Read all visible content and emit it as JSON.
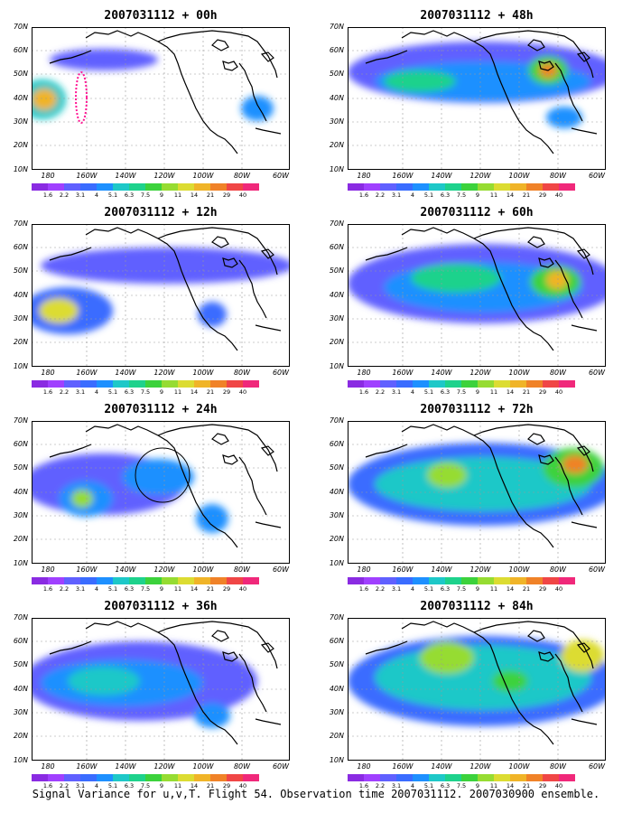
{
  "panels": [
    {
      "title": "2007031112 + 00h"
    },
    {
      "title": "2007031112 + 48h"
    },
    {
      "title": "2007031112 + 12h"
    },
    {
      "title": "2007031112 + 60h"
    },
    {
      "title": "2007031112 + 24h"
    },
    {
      "title": "2007031112 + 72h"
    },
    {
      "title": "2007031112 + 36h"
    },
    {
      "title": "2007031112 + 84h"
    }
  ],
  "lat_labels": [
    "70N",
    "60N",
    "50N",
    "40N",
    "30N",
    "20N",
    "10N"
  ],
  "lon_labels": [
    "180",
    "160W",
    "140W",
    "120W",
    "100W",
    "80W",
    "60W"
  ],
  "colorbar": {
    "labels": [
      "1.6",
      "2.2",
      "3.1",
      "4",
      "5.1",
      "6.3",
      "7.5",
      "9",
      "11",
      "14",
      "21",
      "29",
      "40"
    ],
    "colors": [
      "#8a2be2",
      "#a040ff",
      "#6060ff",
      "#3a6cff",
      "#1e90ff",
      "#1ec8c8",
      "#1ed28c",
      "#3cd23c",
      "#96dc32",
      "#dcdc32",
      "#f0b428",
      "#f08228",
      "#f04646",
      "#f0287a"
    ]
  },
  "footer": "Signal Variance for u,v,T. Flight 54. Observation time 2007031112. 2007030900 ensemble."
}
